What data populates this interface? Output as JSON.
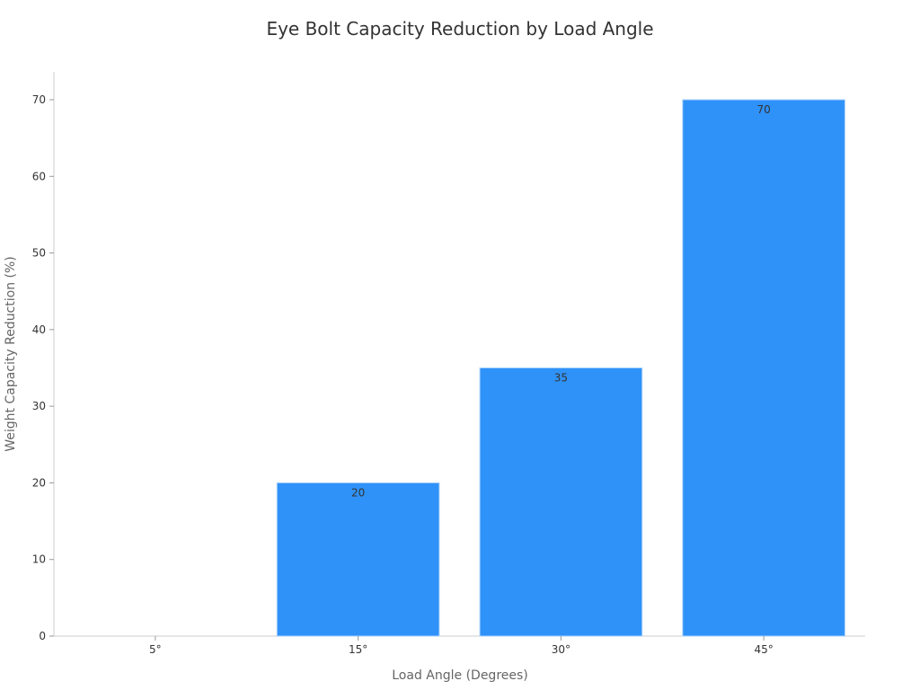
{
  "chart_data": {
    "type": "bar",
    "title": "Eye Bolt Capacity Reduction by Load Angle",
    "xlabel": "Load Angle (Degrees)",
    "ylabel": "Weight Capacity Reduction (%)",
    "categories": [
      "5°",
      "15°",
      "30°",
      "45°"
    ],
    "values": [
      0,
      20,
      35,
      70
    ],
    "data_labels": [
      "",
      "20",
      "35",
      "70"
    ],
    "ylim": [
      0,
      74
    ],
    "yticks": [
      0,
      10,
      20,
      30,
      40,
      50,
      60,
      70
    ],
    "grid": false,
    "legend": null,
    "bar_color": "#2f92f8"
  }
}
